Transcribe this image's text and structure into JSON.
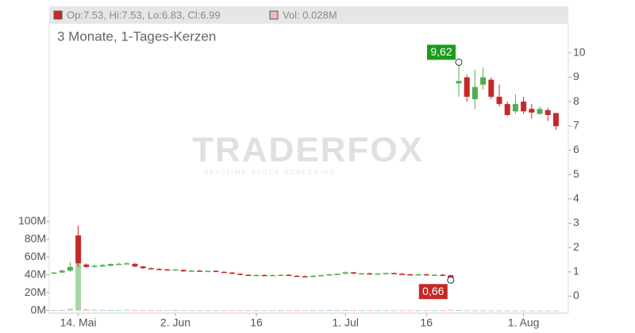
{
  "chart_data": {
    "type": "candlestick",
    "header_text": "Op:7.53, Hi:7.53, Lo:6.83, Cl:6.99",
    "volume_text": "Vol: 0.028M",
    "subtitle": "3 Monate, 1-Tages-Kerzen",
    "watermark": "TRADERFOX",
    "watermark_tagline": "REALTIME STOCK SCREENING",
    "high_label": "9,62",
    "low_label": "0,66",
    "categories": [
      null,
      null,
      null,
      "14. Mai",
      null,
      null,
      null,
      null,
      null,
      null,
      null,
      null,
      null,
      null,
      null,
      "2. Jun",
      null,
      null,
      null,
      null,
      null,
      null,
      null,
      null,
      null,
      "16",
      null,
      null,
      null,
      null,
      null,
      null,
      null,
      null,
      null,
      null,
      "1. Jul",
      null,
      null,
      null,
      null,
      null,
      null,
      null,
      null,
      null,
      "16",
      null,
      null,
      null,
      null,
      null,
      null,
      null,
      null,
      null,
      null,
      null,
      "1. Aug",
      null,
      null,
      null,
      null
    ],
    "open": [
      0.95,
      0.97,
      1.05,
      2.5,
      1.3,
      1.2,
      1.22,
      1.25,
      1.3,
      1.33,
      1.33,
      1.22,
      1.15,
      1.12,
      1.1,
      1.07,
      1.08,
      1.02,
      1.05,
      1.03,
      1.04,
      1.0,
      0.97,
      0.92,
      0.88,
      0.85,
      0.87,
      0.85,
      0.86,
      0.88,
      0.84,
      0.82,
      0.8,
      0.84,
      0.86,
      0.89,
      0.92,
      0.98,
      0.93,
      0.94,
      0.9,
      0.93,
      0.95,
      0.92,
      0.9,
      0.88,
      0.9,
      0.87,
      0.88,
      0.86,
      8.75,
      9.0,
      8.1,
      8.7,
      8.9,
      8.2,
      7.9,
      7.6,
      8.0,
      7.7,
      7.5,
      7.65,
      7.53
    ],
    "high": [
      1.0,
      1.1,
      1.4,
      2.9,
      1.35,
      1.3,
      1.32,
      1.35,
      1.38,
      1.4,
      1.36,
      1.25,
      1.18,
      1.15,
      1.12,
      1.12,
      1.1,
      1.08,
      1.08,
      1.06,
      1.08,
      1.02,
      1.0,
      0.95,
      0.9,
      0.9,
      0.9,
      0.88,
      0.9,
      0.9,
      0.86,
      0.85,
      0.86,
      0.88,
      0.92,
      0.94,
      1.02,
      1.0,
      0.96,
      0.97,
      0.95,
      0.96,
      0.98,
      0.95,
      0.92,
      0.92,
      0.92,
      0.9,
      0.92,
      0.88,
      9.62,
      9.1,
      9.3,
      9.4,
      9.0,
      8.7,
      8.0,
      8.3,
      8.2,
      7.9,
      7.8,
      7.75,
      7.53
    ],
    "low": [
      0.92,
      0.95,
      1.0,
      1.2,
      1.15,
      1.18,
      1.2,
      1.22,
      1.28,
      1.3,
      1.2,
      1.12,
      1.1,
      1.08,
      1.05,
      1.05,
      1.0,
      1.0,
      1.02,
      1.0,
      1.0,
      0.95,
      0.9,
      0.85,
      0.84,
      0.83,
      0.84,
      0.82,
      0.84,
      0.83,
      0.8,
      0.78,
      0.78,
      0.82,
      0.84,
      0.87,
      0.9,
      0.9,
      0.9,
      0.88,
      0.88,
      0.9,
      0.9,
      0.88,
      0.86,
      0.86,
      0.85,
      0.84,
      0.85,
      0.66,
      8.2,
      8.0,
      7.7,
      8.5,
      8.1,
      7.8,
      7.4,
      7.5,
      7.5,
      7.3,
      7.45,
      7.2,
      6.83
    ],
    "close": [
      0.97,
      1.05,
      1.2,
      1.35,
      1.2,
      1.25,
      1.28,
      1.32,
      1.33,
      1.35,
      1.22,
      1.15,
      1.12,
      1.1,
      1.08,
      1.1,
      1.02,
      1.05,
      1.03,
      1.04,
      1.01,
      0.97,
      0.92,
      0.88,
      0.86,
      0.87,
      0.86,
      0.87,
      0.88,
      0.84,
      0.82,
      0.8,
      0.84,
      0.87,
      0.9,
      0.92,
      0.98,
      0.93,
      0.94,
      0.9,
      0.93,
      0.95,
      0.92,
      0.9,
      0.88,
      0.9,
      0.87,
      0.88,
      0.86,
      0.75,
      8.85,
      8.2,
      8.6,
      9.0,
      8.2,
      7.9,
      7.45,
      7.9,
      7.6,
      7.55,
      7.7,
      7.45,
      6.99
    ],
    "volume": [
      0.5,
      0.6,
      2,
      53,
      1.5,
      0.8,
      0.7,
      0.6,
      0.6,
      0.9,
      0.7,
      0.5,
      0.5,
      0.4,
      0.4,
      0.5,
      0.4,
      0.4,
      0.3,
      0.3,
      0.4,
      0.4,
      0.5,
      0.4,
      0.3,
      0.3,
      0.3,
      0.3,
      0.3,
      0.4,
      0.4,
      0.4,
      0.3,
      0.4,
      0.5,
      0.4,
      0.6,
      0.5,
      0.4,
      0.4,
      0.3,
      0.3,
      0.3,
      0.3,
      0.3,
      0.3,
      0.3,
      0.3,
      0.4,
      0.9,
      0.6,
      0.2,
      0.1,
      0.1,
      0.1,
      0.08,
      0.06,
      0.05,
      0.05,
      0.04,
      0.04,
      0.03,
      0.028
    ],
    "up_color": "#4caf50",
    "down_color": "#c62828",
    "volume_up_color": "#a5d6a7",
    "volume_down_color": "#f4b6b6",
    "ylim": [
      -0.7,
      11.2
    ],
    "yticks": [
      0,
      1,
      2,
      3,
      4,
      5,
      6,
      7,
      8,
      9,
      10
    ],
    "y2lim": [
      -3,
      322
    ],
    "y2ticks": [
      {
        "value": 0,
        "label": "0M"
      },
      {
        "value": 20,
        "label": "20M"
      },
      {
        "value": 40,
        "label": "40M"
      },
      {
        "value": 60,
        "label": "60M"
      },
      {
        "value": 80,
        "label": "80M"
      },
      {
        "value": 100,
        "label": "100M"
      }
    ]
  }
}
